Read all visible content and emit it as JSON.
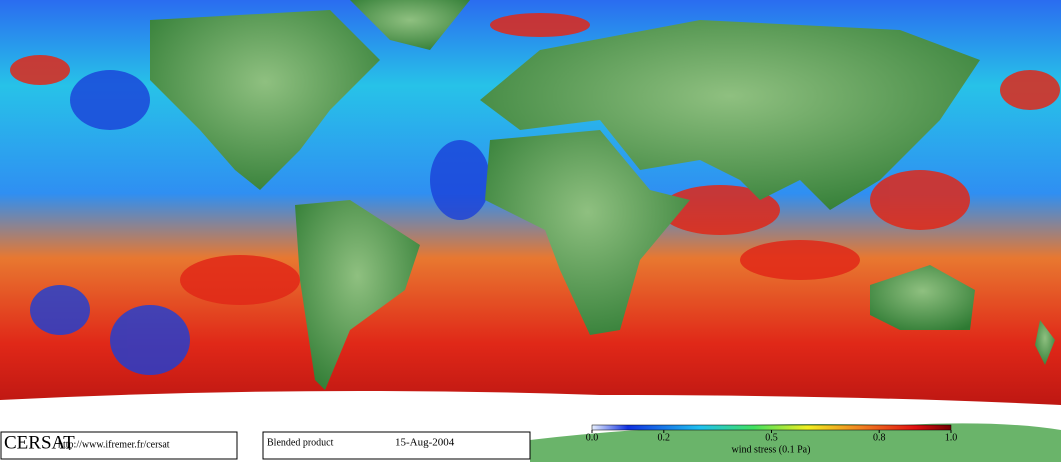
{
  "footer": {
    "logo": "CERSAT",
    "url": "http://www.ifremer.fr/cersat",
    "product": "Blended product",
    "date": "15-Aug-2004"
  },
  "colorbar": {
    "label": "wind stress (0.1 Pa)",
    "lim": [
      0,
      1
    ],
    "ticks": [
      {
        "value": 0,
        "label": "0.0"
      },
      0.2,
      0.5,
      0.8,
      {
        "value": 1,
        "label": "1.0"
      }
    ]
  }
}
